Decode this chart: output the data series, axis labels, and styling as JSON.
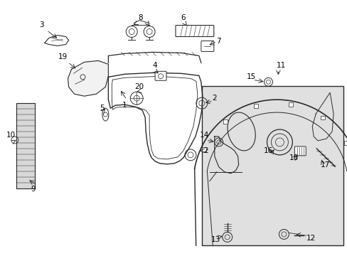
{
  "bg_color": "#ffffff",
  "line_color": "#2a2a2a",
  "inset_bg": "#e8e8e8",
  "fig_width": 4.89,
  "fig_height": 3.6,
  "dpi": 100,
  "font_size": 7.5
}
